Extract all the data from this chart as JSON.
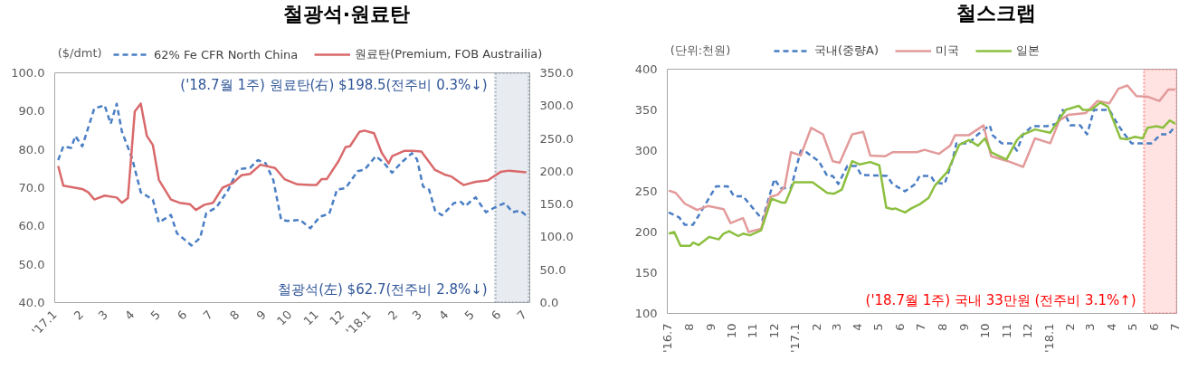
{
  "chart_data": [
    {
      "type": "line",
      "title": "철광석·원료탄",
      "ylabel": "($/dmt)",
      "legend": "top",
      "xlim": [
        "2017-01-01",
        "2018-07-07"
      ],
      "xticks": [
        {
          "value": "2017-01-01",
          "label": "'17.1"
        },
        {
          "value": "2017-02-01",
          "label": "2"
        },
        {
          "value": "2017-03-01",
          "label": "3"
        },
        {
          "value": "2017-04-01",
          "label": "4"
        },
        {
          "value": "2017-05-01",
          "label": "5"
        },
        {
          "value": "2017-06-01",
          "label": "6"
        },
        {
          "value": "2017-07-01",
          "label": "7"
        },
        {
          "value": "2017-08-01",
          "label": "8"
        },
        {
          "value": "2017-09-01",
          "label": "9"
        },
        {
          "value": "2017-10-01",
          "label": "10"
        },
        {
          "value": "2017-11-01",
          "label": "11"
        },
        {
          "value": "2017-12-01",
          "label": "12"
        },
        {
          "value": "2018-01-01",
          "label": "'18.1"
        },
        {
          "value": "2018-02-01",
          "label": "2"
        },
        {
          "value": "2018-03-01",
          "label": "3"
        },
        {
          "value": "2018-04-01",
          "label": "4"
        },
        {
          "value": "2018-05-01",
          "label": "5"
        },
        {
          "value": "2018-06-01",
          "label": "6"
        },
        {
          "value": "2018-07-01",
          "label": "7"
        }
      ],
      "ylim": [
        40,
        100
      ],
      "yticks": [
        {
          "value": 40,
          "label": "40.0"
        },
        {
          "value": 50,
          "label": "50.0"
        },
        {
          "value": 60,
          "label": "60.0"
        },
        {
          "value": 70,
          "label": "70.0"
        },
        {
          "value": 80,
          "label": "80.0"
        },
        {
          "value": 90,
          "label": "90.0"
        },
        {
          "value": 100,
          "label": "100.0"
        }
      ],
      "y2lim": [
        0,
        350
      ],
      "y2ticks": [
        {
          "value": 0,
          "label": "0.0"
        },
        {
          "value": 50,
          "label": "50.0"
        },
        {
          "value": 100,
          "label": "100.0"
        },
        {
          "value": 150,
          "label": "150.0"
        },
        {
          "value": 200,
          "label": "200.0"
        },
        {
          "value": 250,
          "label": "250.0"
        },
        {
          "value": 300,
          "label": "300.0"
        },
        {
          "value": 350,
          "label": "350.0"
        }
      ],
      "series": [
        {
          "name": "62% Fe CFR North China",
          "color": "#4a7ec4",
          "line_style": "dashed",
          "x": [
            "2017-01-05",
            "2017-01-11",
            "2017-01-20",
            "2017-01-25",
            "2017-02-02",
            "2017-02-16",
            "2017-02-28",
            "2017-03-07",
            "2017-03-14",
            "2017-03-20",
            "2017-04-01",
            "2017-04-11",
            "2017-04-25",
            "2017-05-02",
            "2017-05-16",
            "2017-05-23",
            "2017-06-09",
            "2017-06-19",
            "2017-06-26",
            "2017-07-08",
            "2017-07-22",
            "2017-08-02",
            "2017-08-16",
            "2017-08-25",
            "2017-09-03",
            "2017-09-12",
            "2017-09-21",
            "2017-09-28",
            "2017-10-13",
            "2017-10-25",
            "2017-11-05",
            "2017-11-16",
            "2017-11-25",
            "2017-12-05",
            "2017-12-19",
            "2017-12-27",
            "2018-01-09",
            "2018-01-18",
            "2018-01-28",
            "2018-02-08",
            "2018-02-20",
            "2018-02-26",
            "2018-03-05",
            "2018-03-12",
            "2018-03-19",
            "2018-03-27",
            "2018-04-10",
            "2018-04-18",
            "2018-04-23",
            "2018-05-05",
            "2018-05-17",
            "2018-05-27",
            "2018-06-08",
            "2018-06-17",
            "2018-06-26",
            "2018-07-03"
          ],
          "values": [
            77.2,
            80.8,
            80.4,
            83.5,
            80.8,
            90.7,
            91.5,
            86.7,
            91.9,
            84.7,
            77.6,
            68.8,
            66.9,
            60.9,
            62.9,
            58.1,
            54.9,
            56.9,
            63.3,
            64.9,
            69.6,
            74.8,
            75.2,
            77.2,
            76.4,
            72.0,
            61.7,
            61.3,
            61.6,
            59.4,
            62.4,
            63.2,
            69.5,
            69.9,
            74.3,
            74.7,
            78.2,
            76.6,
            73.9,
            76.6,
            79.0,
            77.4,
            70.3,
            69.5,
            64.0,
            62.8,
            66.0,
            66.3,
            65.2,
            67.5,
            63.6,
            64.8,
            66.0,
            63.6,
            64.0,
            62.7
          ]
        },
        {
          "name": "원료탄(Premium, FOB Austrailia)",
          "color": "#d9696b",
          "line_style": "solid",
          "axis": "y2",
          "x": [
            "2017-01-05",
            "2017-01-11",
            "2017-02-02",
            "2017-02-09",
            "2017-02-16",
            "2017-02-28",
            "2017-03-14",
            "2017-03-20",
            "2017-03-27",
            "2017-04-04",
            "2017-04-11",
            "2017-04-18",
            "2017-04-25",
            "2017-05-02",
            "2017-05-16",
            "2017-05-26",
            "2017-06-07",
            "2017-06-14",
            "2017-06-24",
            "2017-07-04",
            "2017-07-15",
            "2017-07-27",
            "2017-08-06",
            "2017-08-16",
            "2017-08-28",
            "2017-09-14",
            "2017-09-25",
            "2017-10-10",
            "2017-10-25",
            "2017-11-01",
            "2017-11-07",
            "2017-11-13",
            "2017-11-27",
            "2017-12-05",
            "2017-12-10",
            "2017-12-21",
            "2017-12-27",
            "2018-01-07",
            "2018-01-16",
            "2018-01-24",
            "2018-01-28",
            "2018-02-11",
            "2018-02-21",
            "2018-03-03",
            "2018-03-19",
            "2018-03-30",
            "2018-04-07",
            "2018-04-21",
            "2018-05-05",
            "2018-05-19",
            "2018-06-03",
            "2018-06-13",
            "2018-07-03"
          ],
          "values": [
            208,
            178,
            173,
            168,
            157,
            163,
            160,
            152,
            159,
            291,
            303,
            254,
            240,
            187,
            157,
            152,
            150,
            141,
            149,
            152,
            175,
            182,
            194,
            196,
            210,
            205,
            188,
            180,
            179,
            179,
            188,
            188,
            216,
            237,
            238,
            260,
            262,
            258,
            228,
            212,
            223,
            231,
            231,
            230,
            202,
            195,
            192,
            179,
            184,
            186,
            199,
            201,
            198.5
          ]
        }
      ],
      "bands": [
        {
          "axis": "x",
          "from": "2018-05-28",
          "to": "2018-07-06",
          "color": "#d6dce5"
        }
      ],
      "annotations": [
        "('18.7월 1주) 원료탄(右) $198.5(전주비  0.3%↓)",
        "철광석(左) $62.7(전주비  2.8%↓)"
      ]
    },
    {
      "type": "line",
      "title": "철스크랩",
      "ylabel": "(단위:천원)",
      "legend": "top",
      "xlim": [
        "2016-07-01",
        "2018-07-04"
      ],
      "xticks": [
        {
          "value": "2016-07-01",
          "label": "'16.7"
        },
        {
          "value": "2016-08-01",
          "label": "8"
        },
        {
          "value": "2016-09-01",
          "label": "9"
        },
        {
          "value": "2016-10-01",
          "label": "10"
        },
        {
          "value": "2016-11-01",
          "label": "11"
        },
        {
          "value": "2016-12-01",
          "label": "12"
        },
        {
          "value": "2017-01-01",
          "label": "'17.1"
        },
        {
          "value": "2017-02-01",
          "label": "2"
        },
        {
          "value": "2017-03-01",
          "label": "3"
        },
        {
          "value": "2017-04-01",
          "label": "4"
        },
        {
          "value": "2017-05-01",
          "label": "5"
        },
        {
          "value": "2017-06-01",
          "label": "6"
        },
        {
          "value": "2017-07-01",
          "label": "7"
        },
        {
          "value": "2017-08-01",
          "label": "8"
        },
        {
          "value": "2017-09-01",
          "label": "9"
        },
        {
          "value": "2017-10-01",
          "label": "10"
        },
        {
          "value": "2017-11-01",
          "label": "11"
        },
        {
          "value": "2017-12-01",
          "label": "12"
        },
        {
          "value": "2018-01-01",
          "label": "'18.1"
        },
        {
          "value": "2018-02-01",
          "label": "2"
        },
        {
          "value": "2018-03-01",
          "label": "3"
        },
        {
          "value": "2018-04-01",
          "label": "4"
        },
        {
          "value": "2018-05-01",
          "label": "5"
        },
        {
          "value": "2018-06-01",
          "label": "6"
        },
        {
          "value": "2018-07-01",
          "label": "7"
        }
      ],
      "ylim": [
        100,
        400
      ],
      "yticks": [
        100,
        150,
        200,
        250,
        300,
        350,
        400
      ],
      "series": [
        {
          "name": "국내(중량A)",
          "color": "#4a7ec4",
          "line_style": "dashed",
          "x": [
            "2016-07-03",
            "2016-07-18",
            "2016-07-26",
            "2016-08-07",
            "2016-08-15",
            "2016-09-09",
            "2016-09-26",
            "2016-10-05",
            "2016-10-18",
            "2016-11-15",
            "2016-12-02",
            "2016-12-11",
            "2016-12-26",
            "2017-01-09",
            "2017-01-17",
            "2017-02-04",
            "2017-02-16",
            "2017-02-24",
            "2017-03-04",
            "2017-03-17",
            "2017-03-30",
            "2017-04-06",
            "2017-05-13",
            "2017-05-21",
            "2017-05-25",
            "2017-06-08",
            "2017-06-23",
            "2017-06-29",
            "2017-07-15",
            "2017-07-21",
            "2017-08-04",
            "2017-08-15",
            "2017-08-21",
            "2017-09-08",
            "2017-09-21",
            "2017-10-08",
            "2017-10-12",
            "2017-10-25",
            "2017-11-08",
            "2017-11-16",
            "2017-11-25",
            "2017-12-08",
            "2017-12-29",
            "2018-01-12",
            "2018-01-21",
            "2018-02-01",
            "2018-02-15",
            "2018-02-25",
            "2018-03-07",
            "2018-03-29",
            "2018-04-11",
            "2018-04-20",
            "2018-04-30",
            "2018-05-29",
            "2018-06-11",
            "2018-06-22",
            "2018-07-02"
          ],
          "values": [
            224,
            218,
            209,
            209,
            220,
            256,
            256,
            244,
            244,
            215,
            265,
            254,
            254,
            300,
            298,
            287,
            269,
            269,
            259,
            281,
            281,
            270,
            269,
            259,
            257,
            250,
            259,
            269,
            269,
            261,
            259,
            287,
            309,
            309,
            320,
            331,
            319,
            309,
            309,
            300,
            320,
            330,
            330,
            333,
            350,
            331,
            331,
            320,
            350,
            350,
            331,
            320,
            309,
            309,
            320,
            320,
            330
          ]
        },
        {
          "name": "미국",
          "color": "#e39a9a",
          "line_style": "solid",
          "x": [
            "2016-07-03",
            "2016-07-13",
            "2016-07-26",
            "2016-08-13",
            "2016-08-29",
            "2016-09-09",
            "2016-09-20",
            "2016-09-30",
            "2016-10-18",
            "2016-10-26",
            "2016-11-13",
            "2016-11-26",
            "2016-12-07",
            "2016-12-17",
            "2016-12-26",
            "2017-01-09",
            "2017-01-24",
            "2017-02-10",
            "2017-02-24",
            "2017-03-06",
            "2017-03-24",
            "2017-04-09",
            "2017-04-19",
            "2017-05-10",
            "2017-05-21",
            "2017-06-25",
            "2017-07-06",
            "2017-07-27",
            "2017-08-12",
            "2017-08-19",
            "2017-09-08",
            "2017-09-29",
            "2017-10-10",
            "2017-11-03",
            "2017-11-25",
            "2017-12-12",
            "2018-01-03",
            "2018-01-16",
            "2018-01-29",
            "2018-02-23",
            "2018-03-12",
            "2018-03-29",
            "2018-04-11",
            "2018-04-24",
            "2018-05-07",
            "2018-05-24",
            "2018-06-09",
            "2018-06-22",
            "2018-07-02"
          ],
          "values": [
            251,
            248,
            235,
            227,
            232,
            230,
            228,
            211,
            217,
            200,
            204,
            243,
            246,
            256,
            298,
            294,
            328,
            320,
            287,
            285,
            320,
            323,
            294,
            293,
            298,
            298,
            301,
            296,
            306,
            319,
            319,
            331,
            293,
            287,
            280,
            315,
            309,
            337,
            344,
            346,
            361,
            358,
            376,
            380,
            367,
            366,
            361,
            375,
            375
          ]
        },
        {
          "name": "일본",
          "color": "#8cbf3f",
          "line_style": "solid",
          "x": [
            "2016-07-03",
            "2016-07-11",
            "2016-07-20",
            "2016-08-03",
            "2016-08-07",
            "2016-08-15",
            "2016-08-30",
            "2016-09-13",
            "2016-09-20",
            "2016-09-28",
            "2016-10-11",
            "2016-10-18",
            "2016-10-28",
            "2016-11-13",
            "2016-11-28",
            "2016-12-13",
            "2016-12-18",
            "2016-12-30",
            "2017-01-26",
            "2017-02-16",
            "2017-02-26",
            "2017-03-09",
            "2017-03-24",
            "2017-04-04",
            "2017-04-19",
            "2017-05-02",
            "2017-05-12",
            "2017-05-21",
            "2017-05-25",
            "2017-06-08",
            "2017-06-17",
            "2017-06-29",
            "2017-07-12",
            "2017-07-21",
            "2017-08-08",
            "2017-08-25",
            "2017-09-08",
            "2017-09-21",
            "2017-10-01",
            "2017-10-10",
            "2017-11-01",
            "2017-11-16",
            "2017-11-23",
            "2017-12-12",
            "2018-01-03",
            "2018-01-25",
            "2018-02-13",
            "2018-02-19",
            "2018-03-03",
            "2018-03-16",
            "2018-03-27",
            "2018-04-14",
            "2018-04-24",
            "2018-05-05",
            "2018-05-16",
            "2018-05-23",
            "2018-06-05",
            "2018-06-14",
            "2018-06-24",
            "2018-07-02"
          ],
          "values": [
            198,
            200,
            183,
            183,
            187,
            184,
            194,
            191,
            198,
            201,
            195,
            198,
            196,
            202,
            241,
            236,
            236,
            261,
            261,
            248,
            247,
            252,
            287,
            283,
            286,
            282,
            230,
            228,
            229,
            224,
            229,
            234,
            242,
            257,
            274,
            307,
            313,
            306,
            315,
            298,
            289,
            313,
            319,
            326,
            322,
            350,
            355,
            350,
            350,
            359,
            354,
            315,
            314,
            317,
            315,
            328,
            330,
            328,
            337,
            333
          ]
        }
      ],
      "bands": [
        {
          "axis": "x",
          "from": "2018-05-18",
          "to": "2018-07-04",
          "color": "#ffcccc"
        }
      ],
      "annotations": [
        "('18.7월 1주) 국내 33만원 (전주비  3.1%↑)"
      ]
    }
  ]
}
